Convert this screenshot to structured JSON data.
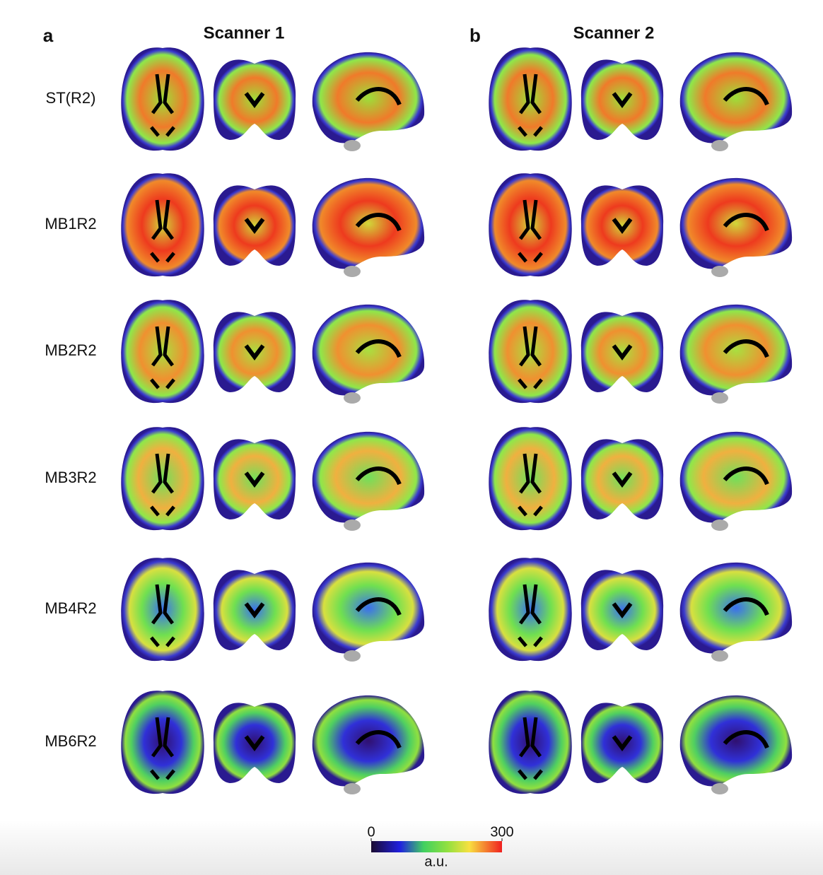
{
  "panels": [
    {
      "letter": "a",
      "title": "Scanner 1"
    },
    {
      "letter": "b",
      "title": "Scanner 2"
    }
  ],
  "rows": [
    "ST(R2)",
    "MB1R2",
    "MB2R2",
    "MB3R2",
    "MB4R2",
    "MB6R2"
  ],
  "colorbar": {
    "ticks": [
      0,
      300
    ],
    "label": "a.u."
  }
}
